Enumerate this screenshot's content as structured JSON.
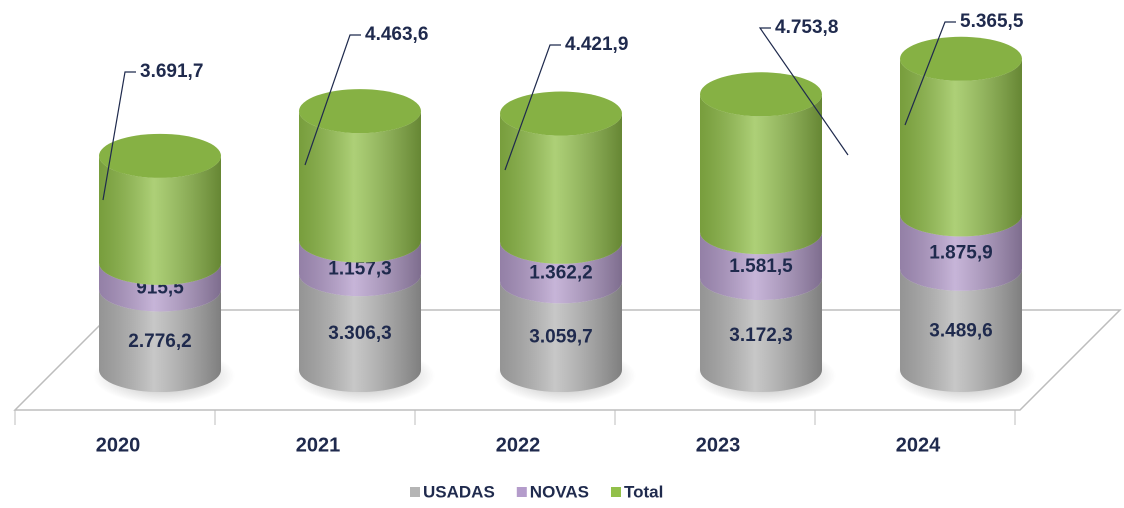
{
  "chart_data": {
    "type": "bar",
    "stacked": true,
    "categories": [
      "2020",
      "2021",
      "2022",
      "2023",
      "2024"
    ],
    "series": [
      {
        "name": "USADAS",
        "color": "#b5b5b5",
        "values": [
          2776.2,
          3306.3,
          3059.7,
          3172.3,
          3489.6
        ],
        "value_labels": [
          "2.776,2",
          "3.306,3",
          "3.059,7",
          "3.172,3",
          "3.489,6"
        ]
      },
      {
        "name": "NOVAS",
        "color": "#b49ccb",
        "values": [
          915.5,
          1157.3,
          1362.2,
          1581.5,
          1875.9
        ],
        "value_labels": [
          "915,5",
          "1.157,3",
          "1.362,2",
          "1.581,5",
          "1.875,9"
        ]
      },
      {
        "name": "Total",
        "color": "#92c04a",
        "values": [
          3691.7,
          4463.6,
          4421.9,
          4753.8,
          5365.5
        ],
        "value_labels": [
          "3.691,7",
          "4.463,6",
          "4.421,9",
          "4.753,8",
          "5.365,5"
        ]
      }
    ],
    "legend": "bottom"
  }
}
